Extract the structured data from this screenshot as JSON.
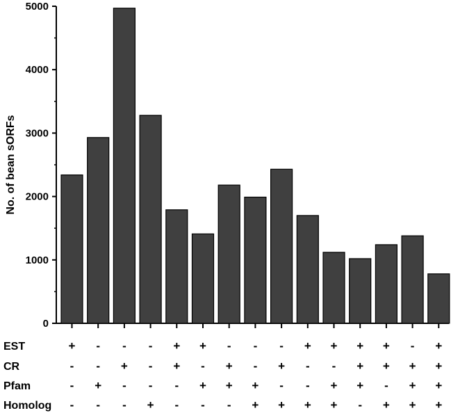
{
  "chart_data": {
    "type": "bar",
    "ylabel": "No. of bean sORFs",
    "xlabel": "",
    "ylim": [
      0,
      5000
    ],
    "yticks": [
      0,
      1000,
      2000,
      3000,
      4000,
      5000
    ],
    "grid": false,
    "legend": "none",
    "bar_color": "#404040",
    "values": [
      2340,
      2930,
      4970,
      3280,
      1790,
      1410,
      2180,
      1990,
      2430,
      1700,
      1120,
      1020,
      1240,
      1380,
      780
    ],
    "feature_rows": [
      {
        "label": "EST",
        "signs": [
          "+",
          "-",
          "-",
          "-",
          "+",
          "+",
          "-",
          "-",
          "-",
          "+",
          "+",
          "+",
          "+",
          "-",
          "+"
        ]
      },
      {
        "label": "CR",
        "signs": [
          "-",
          "-",
          "+",
          "-",
          "+",
          "-",
          "+",
          "-",
          "+",
          "-",
          "-",
          "+",
          "+",
          "+",
          "+"
        ]
      },
      {
        "label": "Pfam",
        "signs": [
          "-",
          "+",
          "-",
          "-",
          "-",
          "+",
          "+",
          "+",
          "-",
          "-",
          "+",
          "+",
          "-",
          "+",
          "+"
        ]
      },
      {
        "label": "Homolog",
        "signs": [
          "-",
          "-",
          "-",
          "+",
          "-",
          "-",
          "-",
          "+",
          "+",
          "+",
          "+",
          "-",
          "+",
          "+",
          "+"
        ]
      }
    ]
  }
}
